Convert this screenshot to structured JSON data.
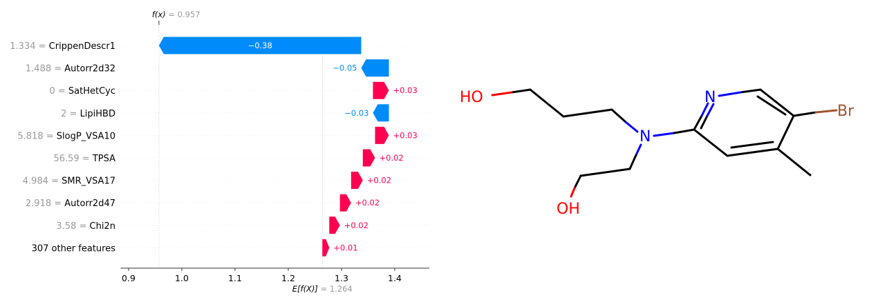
{
  "chart_data": {
    "type": "waterfall",
    "fx": {
      "value": 0.957,
      "label": "f(x)",
      "text": "= 0.957"
    },
    "base": {
      "value": 1.264,
      "label": "E[f(X)]",
      "text": "= 1.264"
    },
    "xlim": [
      0.885,
      1.465
    ],
    "x_ticks": [
      0.9,
      1.0,
      1.1,
      1.2,
      1.3,
      1.4
    ],
    "x_tick_labels": [
      "0.9",
      "1.0",
      "1.1",
      "1.2",
      "1.3",
      "1.4"
    ],
    "colors": {
      "positive": "#ff0051",
      "negative": "#008bfb",
      "muted": "#999999"
    },
    "features": [
      {
        "value_text": "1.334",
        "name": "CrippenDescr1",
        "shap": -0.38,
        "label": "−0.38",
        "left": 0.957,
        "right": 1.337
      },
      {
        "value_text": "1.488",
        "name": "Autorr2d32",
        "shap": -0.05,
        "label": "−0.05",
        "left": 1.337,
        "right": 1.389
      },
      {
        "value_text": "0",
        "name": "SatHetCyc",
        "shap": 0.03,
        "label": "+0.03",
        "left": 1.359,
        "right": 1.389
      },
      {
        "value_text": "2",
        "name": "LipiHBD",
        "shap": -0.03,
        "label": "−0.03",
        "left": 1.359,
        "right": 1.389
      },
      {
        "value_text": "5.818",
        "name": "SlogP_VSA10",
        "shap": 0.03,
        "label": "+0.03",
        "left": 1.363,
        "right": 1.389
      },
      {
        "value_text": "56.59",
        "name": "TPSA",
        "shap": 0.02,
        "label": "+0.02",
        "left": 1.34,
        "right": 1.363
      },
      {
        "value_text": "4.984",
        "name": "SMR_VSA17",
        "shap": 0.02,
        "label": "+0.02",
        "left": 1.318,
        "right": 1.34
      },
      {
        "value_text": "2.918",
        "name": "Autorr2d47",
        "shap": 0.02,
        "label": "+0.02",
        "left": 1.297,
        "right": 1.318
      },
      {
        "value_text": "3.58",
        "name": "Chi2n",
        "shap": 0.02,
        "label": "+0.02",
        "left": 1.277,
        "right": 1.297
      },
      {
        "value_text": "",
        "name": "307 other features",
        "shap": 0.01,
        "label": "+0.01",
        "left": 1.264,
        "right": 1.277
      }
    ]
  },
  "molecule": {
    "atoms": {
      "ho": "HO",
      "n_amine": "N",
      "n_ring": "N",
      "br": "Br",
      "oh": "OH"
    },
    "colors": {
      "bond": "#000000",
      "nitrogen": "#0000ff",
      "oxygen": "#ff0000",
      "bromine": "#a0522d"
    }
  }
}
